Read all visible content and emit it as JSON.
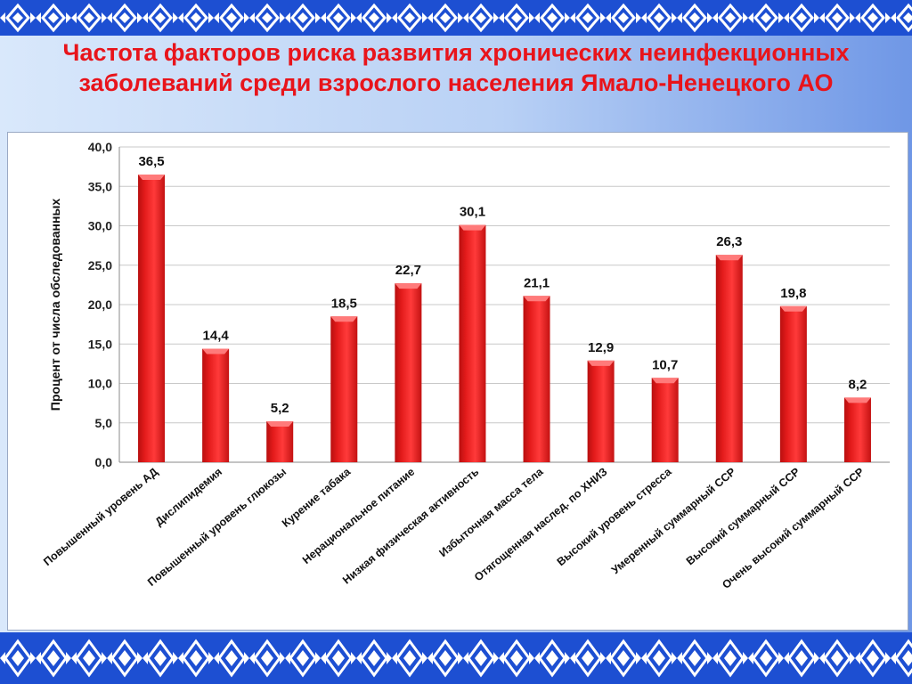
{
  "slide": {
    "title": "Частота факторов риска развития хронических неинфекционных заболеваний среди взрослого населения Ямало-Ненецкого АО",
    "colors": {
      "title": "#e8141b",
      "bar": "#e31b1b",
      "ornament": "#1d4fd2"
    }
  },
  "chart_data": {
    "type": "bar",
    "title": "",
    "xlabel": "",
    "ylabel": "Процент от числа обследованных",
    "ylim": [
      0,
      40
    ],
    "yticks": [
      "0,0",
      "5,0",
      "10,0",
      "15,0",
      "20,0",
      "25,0",
      "30,0",
      "35,0",
      "40,0"
    ],
    "grid": true,
    "legend": "none",
    "categories": [
      "Повышенный уровень АД",
      "Дислипидемия",
      "Повышенный уровень глюкозы",
      "Курение табака",
      "Нерациональное питание",
      "Низкая физическая активность",
      "Избыточная масса тела",
      "Отягощенная наслед. по ХНИЗ",
      "Высокий уровень стресса",
      "Умеренный суммарный ССР",
      "Высокий суммарный ССР",
      "Очень высокий суммарный ССР"
    ],
    "values": [
      36.5,
      14.4,
      5.2,
      18.5,
      22.7,
      30.1,
      21.1,
      12.9,
      10.7,
      26.3,
      19.8,
      8.2
    ],
    "value_labels": [
      "36,5",
      "14,4",
      "5,2",
      "18,5",
      "22,7",
      "30,1",
      "21,1",
      "12,9",
      "10,7",
      "26,3",
      "19,8",
      "8,2"
    ]
  }
}
